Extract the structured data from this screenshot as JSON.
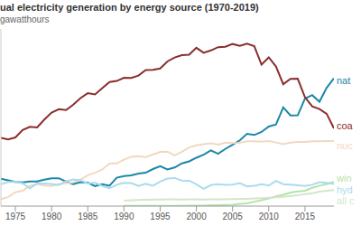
{
  "chart_data": {
    "type": "line",
    "title": "ual electricity generation by energy source (1970-2019)",
    "subtitle": "gawatthours",
    "x": [
      1973,
      1974,
      1975,
      1976,
      1977,
      1978,
      1979,
      1980,
      1981,
      1982,
      1983,
      1984,
      1985,
      1986,
      1987,
      1988,
      1989,
      1990,
      1991,
      1992,
      1993,
      1994,
      1995,
      1996,
      1997,
      1998,
      1999,
      2000,
      2001,
      2002,
      2003,
      2004,
      2005,
      2006,
      2007,
      2008,
      2009,
      2010,
      2011,
      2012,
      2013,
      2014,
      2015,
      2016,
      2017,
      2018,
      2019
    ],
    "xlim": [
      1973,
      2019
    ],
    "xticks": [
      1975,
      1980,
      1985,
      1990,
      1995,
      2000,
      2005,
      2010,
      2015
    ],
    "ylim": [
      0,
      2200
    ],
    "grid": false,
    "tick_labels": "x",
    "series": [
      {
        "name": "nat",
        "color": "#1c86a8",
        "values": [
          341,
          320,
          300,
          295,
          306,
          305,
          329,
          346,
          346,
          305,
          274,
          297,
          292,
          249,
          273,
          253,
          352,
          372,
          382,
          404,
          415,
          460,
          496,
          455,
          479,
          531,
          556,
          601,
          639,
          691,
          650,
          710,
          761,
          816,
          897,
          883,
          921,
          988,
          1014,
          1226,
          1125,
          1127,
          1335,
          1379,
          1296,
          1469,
          1586
        ]
      },
      {
        "name": "coa",
        "color": "#8a2d2d",
        "values": [
          848,
          828,
          853,
          944,
          985,
          976,
          1075,
          1162,
          1203,
          1192,
          1259,
          1342,
          1402,
          1386,
          1464,
          1541,
          1554,
          1594,
          1592,
          1621,
          1690,
          1691,
          1709,
          1796,
          1845,
          1874,
          1881,
          1966,
          1904,
          1933,
          1974,
          1978,
          2013,
          1991,
          2016,
          1986,
          1756,
          1847,
          1733,
          1514,
          1581,
          1582,
          1352,
          1239,
          1206,
          1146,
          966
        ]
      },
      {
        "name": "nuc",
        "color": "#f0d9c0",
        "values": [
          83,
          114,
          173,
          191,
          251,
          276,
          255,
          251,
          273,
          283,
          294,
          328,
          384,
          414,
          455,
          527,
          529,
          577,
          613,
          619,
          610,
          640,
          673,
          675,
          629,
          674,
          728,
          754,
          769,
          780,
          764,
          789,
          782,
          787,
          806,
          806,
          799,
          807,
          790,
          769,
          789,
          797,
          797,
          806,
          805,
          807,
          809
        ]
      },
      {
        "name": "win",
        "color": "#b5e3a6",
        "values": [
          null,
          null,
          null,
          null,
          null,
          null,
          null,
          null,
          null,
          null,
          null,
          null,
          null,
          null,
          null,
          null,
          null,
          3,
          3,
          3,
          3,
          4,
          3,
          3,
          3,
          3,
          5,
          6,
          7,
          10,
          11,
          14,
          18,
          27,
          34,
          55,
          74,
          95,
          120,
          141,
          168,
          182,
          191,
          227,
          254,
          273,
          300
        ]
      },
      {
        "name": "hyd",
        "color": "#a9dcee",
        "values": [
          272,
          301,
          300,
          284,
          220,
          280,
          280,
          276,
          261,
          309,
          332,
          321,
          281,
          291,
          250,
          223,
          265,
          290,
          286,
          250,
          278,
          254,
          305,
          342,
          349,
          318,
          315,
          271,
          214,
          260,
          271,
          265,
          267,
          286,
          245,
          253,
          271,
          255,
          313,
          272,
          266,
          257,
          249,
          265,
          297,
          288,
          274
        ]
      },
      {
        "name": "all c",
        "color": "#d3e6cc",
        "values": [
          null,
          null,
          null,
          null,
          null,
          null,
          null,
          null,
          null,
          null,
          null,
          null,
          null,
          null,
          null,
          null,
          null,
          68,
          72,
          75,
          78,
          80,
          82,
          83,
          83,
          82,
          83,
          84,
          80,
          84,
          84,
          85,
          87,
          89,
          90,
          95,
          99,
          104,
          110,
          115,
          125,
          135,
          150,
          160,
          180,
          190,
          200
        ]
      }
    ]
  }
}
